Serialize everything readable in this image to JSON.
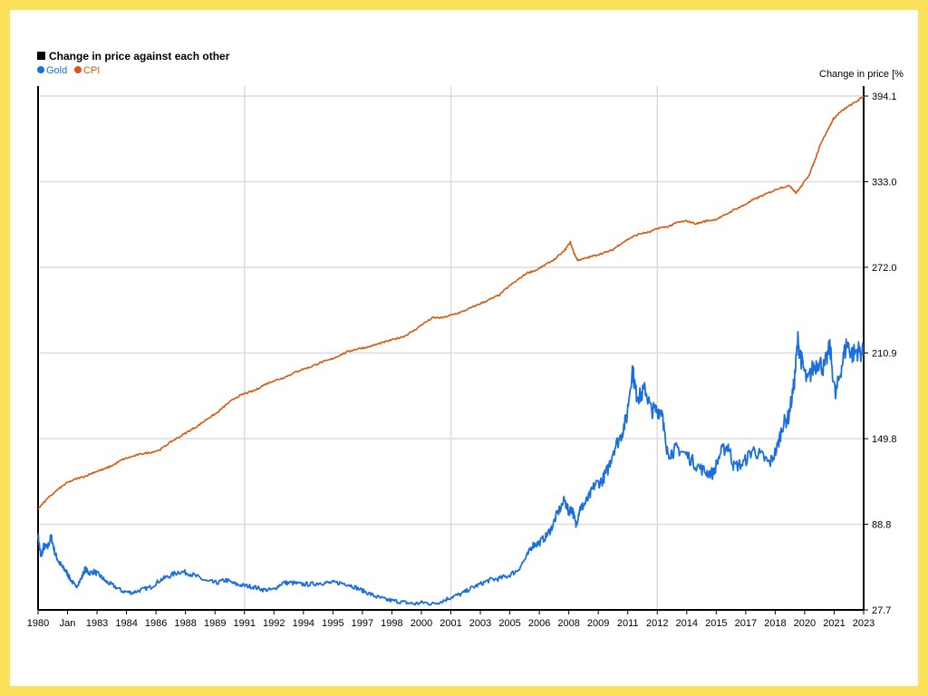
{
  "chart_data": {
    "type": "line",
    "title": "Change in price against each other",
    "ylabel": "Change in price [%",
    "ylim": [
      27.7,
      394.1
    ],
    "y_ticks": [
      "27.7",
      "88.8",
      "149.8",
      "210.9",
      "272.0",
      "333.0",
      "394.1"
    ],
    "x_tick_labels": [
      "1980",
      "Jan",
      "1983",
      "1984",
      "1986",
      "1988",
      "1989",
      "1991",
      "1992",
      "1994",
      "1995",
      "1997",
      "1998",
      "2000",
      "2001",
      "2003",
      "2005",
      "2006",
      "2008",
      "2009",
      "2011",
      "2012",
      "2014",
      "2015",
      "2017",
      "2018",
      "2020",
      "2021",
      "2023"
    ],
    "x_range": [
      1980.0,
      2023.9
    ],
    "grid": true,
    "legend": "top-left",
    "series": [
      {
        "name": "Gold",
        "color": "#1a6fdc",
        "x": [
          1980.0,
          1980.15,
          1980.3,
          1980.5,
          1980.7,
          1980.9,
          1981.1,
          1981.3,
          1981.5,
          1981.7,
          1982.0,
          1982.3,
          1982.5,
          1982.7,
          1983.0,
          1983.3,
          1983.6,
          1984.0,
          1984.5,
          1985.0,
          1985.5,
          1986.0,
          1986.5,
          1987.0,
          1987.5,
          1988.0,
          1988.5,
          1989.0,
          1989.5,
          1990.0,
          1990.5,
          1991.0,
          1991.5,
          1992.0,
          1992.5,
          1993.0,
          1993.5,
          1994.0,
          1994.5,
          1995.0,
          1995.5,
          1996.0,
          1996.5,
          1997.0,
          1997.5,
          1998.0,
          1998.5,
          1999.0,
          1999.5,
          2000.0,
          2000.5,
          2001.0,
          2001.5,
          2002.0,
          2002.5,
          2003.0,
          2003.5,
          2004.0,
          2004.5,
          2005.0,
          2005.5,
          2006.0,
          2006.3,
          2006.6,
          2007.0,
          2007.3,
          2007.6,
          2008.0,
          2008.2,
          2008.4,
          2008.6,
          2008.8,
          2009.0,
          2009.3,
          2009.6,
          2010.0,
          2010.3,
          2010.6,
          2011.0,
          2011.3,
          2011.6,
          2011.8,
          2012.0,
          2012.3,
          2012.6,
          2012.9,
          2013.2,
          2013.4,
          2013.7,
          2014.0,
          2014.5,
          2015.0,
          2015.5,
          2015.9,
          2016.3,
          2016.7,
          2017.0,
          2017.5,
          2018.0,
          2018.5,
          2018.9,
          2019.3,
          2019.6,
          2019.9,
          2020.2,
          2020.4,
          2020.6,
          2020.9,
          2021.2,
          2021.5,
          2021.8,
          2022.1,
          2022.4,
          2022.7,
          2023.0,
          2023.3,
          2023.6,
          2023.9
        ],
        "y": [
          81,
          65,
          73,
          72,
          80,
          68,
          62,
          58,
          55,
          50,
          44,
          50,
          57,
          54,
          55,
          52,
          48,
          45,
          41,
          40,
          42,
          44,
          49,
          52,
          55,
          54,
          51,
          48,
          47,
          49,
          46,
          45,
          44,
          42,
          42,
          47,
          47,
          46,
          46,
          47,
          47,
          47,
          46,
          43,
          40,
          37,
          35,
          34,
          33,
          32,
          33,
          32,
          34,
          37,
          39,
          43,
          46,
          49,
          50,
          52,
          56,
          66,
          74,
          75,
          80,
          86,
          96,
          106,
          98,
          100,
          88,
          100,
          102,
          108,
          117,
          120,
          128,
          142,
          152,
          165,
          200,
          182,
          180,
          185,
          170,
          170,
          170,
          140,
          140,
          143,
          138,
          131,
          126,
          125,
          140,
          145,
          130,
          132,
          142,
          137,
          132,
          143,
          160,
          165,
          188,
          220,
          205,
          190,
          200,
          205,
          200,
          215,
          180,
          200,
          218,
          210,
          213,
          210
        ]
      },
      {
        "name": "CPI",
        "color": "#d65a12",
        "x": [
          1980.0,
          1980.5,
          1981.0,
          1981.5,
          1982.0,
          1982.5,
          1983.0,
          1983.5,
          1984.0,
          1984.5,
          1985.0,
          1985.5,
          1986.0,
          1986.5,
          1987.0,
          1987.5,
          1988.0,
          1988.5,
          1989.0,
          1989.5,
          1990.0,
          1990.5,
          1991.0,
          1991.5,
          1992.0,
          1992.5,
          1993.0,
          1993.5,
          1994.0,
          1994.5,
          1995.0,
          1995.5,
          1996.0,
          1996.5,
          1997.0,
          1997.5,
          1998.0,
          1998.5,
          1999.0,
          1999.5,
          2000.0,
          2000.5,
          2001.0,
          2001.5,
          2002.0,
          2002.5,
          2003.0,
          2003.5,
          2004.0,
          2004.5,
          2005.0,
          2005.5,
          2006.0,
          2006.5,
          2007.0,
          2007.5,
          2008.0,
          2008.3,
          2008.5,
          2008.7,
          2009.0,
          2009.5,
          2010.0,
          2010.5,
          2011.0,
          2011.5,
          2012.0,
          2012.5,
          2013.0,
          2013.5,
          2014.0,
          2014.5,
          2015.0,
          2015.5,
          2016.0,
          2016.5,
          2017.0,
          2017.5,
          2018.0,
          2018.5,
          2019.0,
          2019.5,
          2020.0,
          2020.3,
          2020.6,
          2021.0,
          2021.3,
          2021.6,
          2022.0,
          2022.3,
          2022.6,
          2023.0,
          2023.5,
          2023.9
        ],
        "y": [
          100,
          107,
          113,
          118,
          121,
          123,
          126,
          128,
          131,
          135,
          137,
          139,
          140,
          142,
          147,
          151,
          155,
          159,
          164,
          168,
          174,
          179,
          182,
          184,
          188,
          191,
          193,
          196,
          199,
          201,
          204,
          206,
          209,
          212,
          214,
          215,
          217,
          219,
          221,
          223,
          227,
          232,
          236,
          236,
          238,
          240,
          243,
          246,
          249,
          252,
          258,
          263,
          268,
          270,
          274,
          278,
          284,
          290,
          282,
          277,
          278,
          280,
          282,
          284,
          289,
          293,
          296,
          297,
          300,
          301,
          304,
          305,
          303,
          305,
          306,
          309,
          313,
          316,
          320,
          323,
          326,
          329,
          330,
          325,
          330,
          338,
          348,
          360,
          370,
          378,
          382,
          386,
          390,
          394
        ]
      }
    ]
  }
}
